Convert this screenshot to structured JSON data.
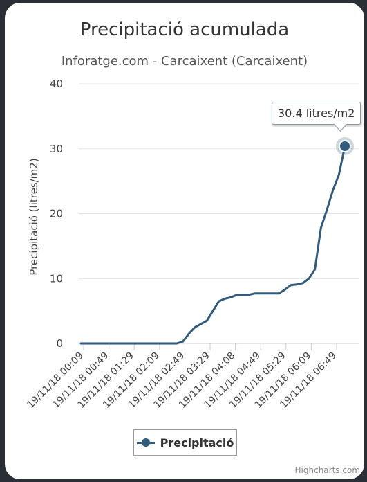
{
  "chart_data": {
    "type": "line",
    "title": "Precipitació acumulada",
    "subtitle": "Inforatge.com - Carcaixent (Carcaixent)",
    "ylabel": "Precipitació (litres/m2)",
    "xlabel": "",
    "ylim": [
      0,
      40
    ],
    "yticks": [
      0,
      10,
      20,
      30,
      40
    ],
    "xtick_labels": [
      "19/11/18 00:09",
      "19/11/18 00:49",
      "19/11/18 01:29",
      "19/11/18 02:09",
      "19/11/18 02:49",
      "19/11/18 03:29",
      "19/11/18 04:08",
      "19/11/18 04:49",
      "19/11/18 05:29",
      "19/11/18 06:09",
      "19/11/18 06:49"
    ],
    "grid": true,
    "legend": "bottom-center",
    "series": [
      {
        "name": "Precipitació",
        "color": "#2f5b7f",
        "x": [
          0,
          5,
          10,
          15,
          20,
          25,
          30,
          35,
          40,
          45,
          50,
          55,
          60,
          65,
          70,
          75,
          80,
          85,
          90,
          95,
          100,
          105,
          110,
          115,
          120,
          125,
          130,
          135,
          140,
          145,
          150,
          155,
          160,
          165,
          170,
          175,
          180,
          185,
          190,
          195,
          200,
          205,
          210,
          215,
          220
        ],
        "values": [
          0,
          0,
          0,
          0,
          0,
          0,
          0,
          0,
          0,
          0,
          0,
          0,
          0,
          0,
          0,
          0,
          0,
          0.3,
          1.5,
          2.5,
          3.0,
          3.5,
          5.0,
          6.5,
          6.9,
          7.1,
          7.5,
          7.5,
          7.5,
          7.7,
          7.7,
          7.7,
          7.7,
          7.7,
          8.3,
          9.0,
          9.1,
          9.3,
          10.0,
          11.4,
          17.8,
          20.6,
          23.6,
          26.0,
          30.4
        ]
      }
    ],
    "highlight": {
      "series": "Precipitació",
      "index": 44,
      "label": "30.4 litres/m2"
    }
  },
  "credits": "Highcharts.com"
}
